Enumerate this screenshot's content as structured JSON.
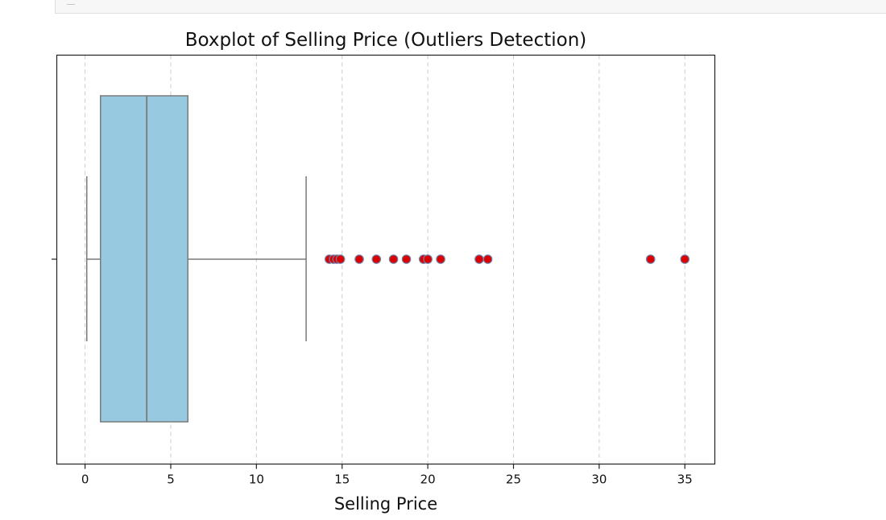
{
  "chart_data": {
    "type": "boxplot",
    "title": "Boxplot of Selling Price (Outliers Detection)",
    "xlabel": "Selling Price",
    "ylabel": "",
    "xlim": [
      -1.65,
      36.75
    ],
    "xticks": [
      0,
      5,
      10,
      15,
      20,
      25,
      30,
      35
    ],
    "tick_labels": [
      "0",
      "5",
      "10",
      "15",
      "20",
      "25",
      "30",
      "35"
    ],
    "grid": "x-axis dashed",
    "box": {
      "min": 0.1,
      "q1": 0.9,
      "median": 3.6,
      "q3": 6.0,
      "max": 12.9
    },
    "outliers": [
      14.25,
      14.5,
      14.7,
      14.9,
      16.0,
      17.0,
      18.0,
      18.75,
      19.75,
      20.0,
      20.75,
      23.0,
      23.5,
      33.0,
      35.0
    ],
    "colors": {
      "box_fill": "#97cae1",
      "box_edge": "#7a7a7a",
      "outlier_fill": "#dd0000",
      "outlier_edge": "#6b7fa8",
      "grid": "#cccccc"
    }
  }
}
